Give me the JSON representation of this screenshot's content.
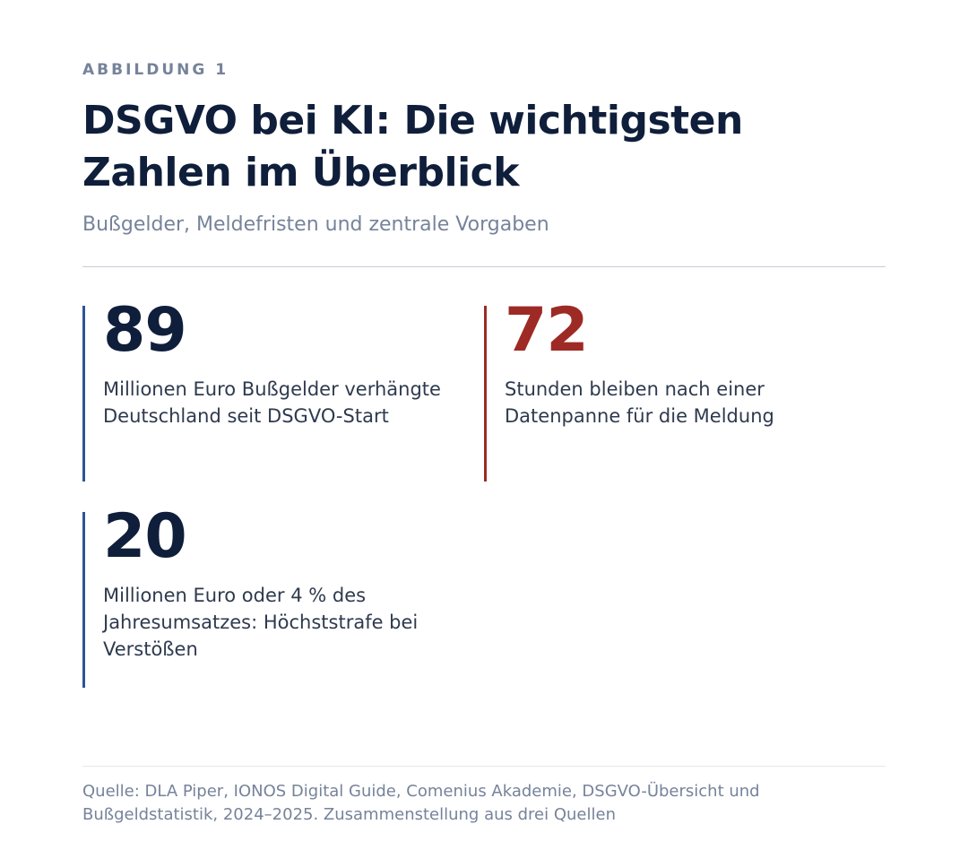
{
  "figure": {
    "eyebrow": "ABBILDUNG 1",
    "title": "DSGVO bei KI: Die wichtigsten Zahlen im Überblick",
    "subtitle": "Bußgelder, Meldefristen und zentrale Vorgaben"
  },
  "stats": [
    {
      "value": "89",
      "description": "Millionen Euro Bußgelder verhängte Deutschland seit DSGVO-Start",
      "accent": "#2f5496"
    },
    {
      "value": "72",
      "description": "Stunden bleiben nach einer Datenpanne für die Meldung",
      "accent": "#9e2a25"
    },
    {
      "value": "20",
      "description": "Millionen Euro oder 4 % des Jahresumsatzes: Höchststrafe bei Verstößen",
      "accent": "#2f5496"
    }
  ],
  "source": "Quelle: DLA Piper, IONOS Digital Guide, Comenius Akademie, DSGVO-Übersicht und Bußgeldstatistik, 2024–2025. Zusammenstellung aus drei Quellen",
  "colors": {
    "title": "#0f1e3a",
    "muted": "#76839a",
    "blue_accent": "#2f5496",
    "red_accent": "#9e2a25"
  }
}
